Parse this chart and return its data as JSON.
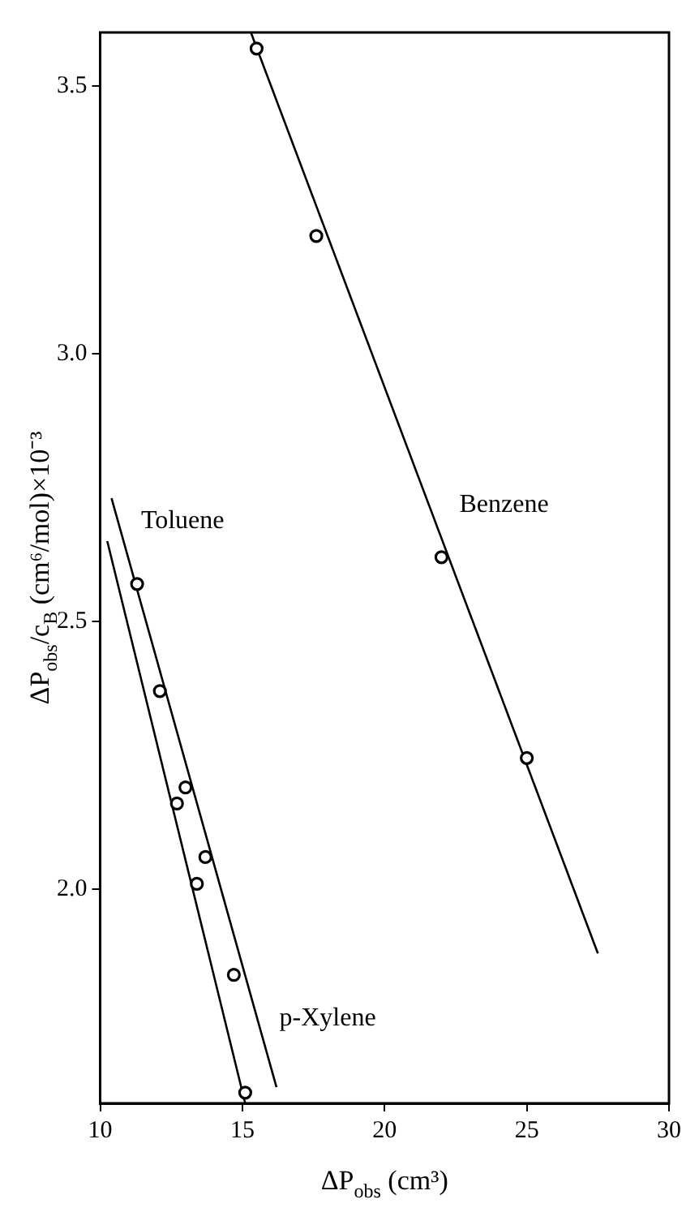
{
  "chart_data": {
    "type": "scatter",
    "xlabel": "ΔP$_{obs}$ (cm³)",
    "ylabel": "ΔP$_{obs}$/c$_{B}$ (cm⁶/mol)×10⁻³",
    "xlim": [
      10,
      30
    ],
    "xticks": [
      10,
      15,
      20,
      25,
      30
    ],
    "ylim": [
      1.6,
      3.6
    ],
    "yticks": [
      {
        "value": 2,
        "label": "2.0"
      },
      {
        "value": 2.5,
        "label": "2.5"
      },
      {
        "value": 3,
        "label": "3.0"
      },
      {
        "value": 3.5,
        "label": "3.5"
      }
    ],
    "grid": false,
    "legend": false,
    "series": [
      {
        "color": "#000000",
        "marker": "circle",
        "x": [
          15.5,
          17.6,
          22.0,
          25.0
        ],
        "values": [
          3.57,
          3.22,
          2.62,
          2.245
        ]
      },
      {
        "color": "#000000",
        "marker": "circle",
        "x": [
          11.3,
          12.1,
          13.0,
          13.7,
          14.7
        ],
        "values": [
          2.57,
          2.37,
          2.19,
          2.06,
          1.84
        ]
      },
      {
        "color": "#000000",
        "marker": "circle",
        "x": [
          12.7,
          13.4,
          15.1
        ],
        "values": [
          2.16,
          2.01,
          1.62
        ]
      },
      {
        "type": "line",
        "color": "#000000",
        "marker": "none",
        "x": [
          15.3,
          27.5
        ],
        "values": [
          3.6,
          1.88
        ]
      },
      {
        "type": "line",
        "color": "#000000",
        "marker": "none",
        "x": [
          10.4,
          16.2
        ],
        "values": [
          2.73,
          1.63
        ]
      },
      {
        "type": "line",
        "color": "#000000",
        "marker": "none",
        "x": [
          10.25,
          15.1
        ],
        "values": [
          2.65,
          1.6
        ]
      }
    ],
    "annotations": [
      "Benzene",
      "Toluene",
      "p-Xylene"
    ]
  }
}
